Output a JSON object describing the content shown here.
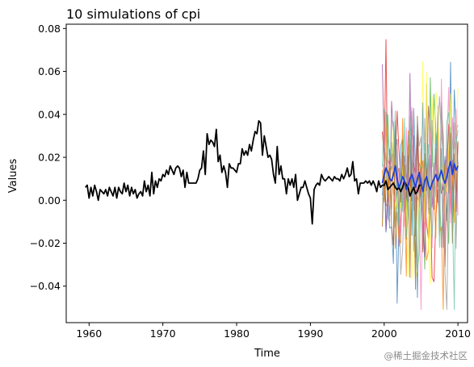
{
  "chart_data": {
    "type": "line",
    "title": "10 simulations of cpi",
    "xlabel": "Time",
    "ylabel": "Values",
    "xlim": [
      1956.9,
      2011.3
    ],
    "ylim": [
      -0.057,
      0.082
    ],
    "x_ticks": [
      1960,
      1970,
      1980,
      1990,
      2000,
      2010
    ],
    "y_ticks": [
      -0.04,
      -0.02,
      0.0,
      0.02,
      0.04,
      0.06,
      0.08
    ],
    "grid": false,
    "legend": "none",
    "colors": {
      "history": "#000000",
      "mean_simulation": "#1f3fd6",
      "simulations": [
        "#e41a1c",
        "#377eb8",
        "#4daf4a",
        "#984ea3",
        "#ff7f00",
        "#ffff33",
        "#a65628",
        "#f781bf",
        "#999999",
        "#66c2a5"
      ]
    },
    "history": {
      "x_start": 1959.5,
      "x_step": 0.25,
      "values": [
        0.006,
        0.007,
        0.001,
        0.006,
        0.002,
        0.007,
        0.004,
        0.0,
        0.005,
        0.004,
        0.003,
        0.005,
        0.002,
        0.006,
        0.004,
        0.002,
        0.006,
        0.001,
        0.006,
        0.004,
        0.003,
        0.008,
        0.004,
        0.007,
        0.002,
        0.006,
        0.003,
        0.005,
        0.001,
        0.003,
        0.004,
        0.002,
        0.009,
        0.004,
        0.007,
        0.002,
        0.013,
        0.003,
        0.009,
        0.006,
        0.01,
        0.009,
        0.012,
        0.011,
        0.014,
        0.012,
        0.016,
        0.014,
        0.012,
        0.015,
        0.016,
        0.015,
        0.011,
        0.014,
        0.006,
        0.013,
        0.008,
        0.008,
        0.008,
        0.008,
        0.008,
        0.01,
        0.014,
        0.015,
        0.023,
        0.012,
        0.031,
        0.026,
        0.028,
        0.027,
        0.025,
        0.033,
        0.018,
        0.021,
        0.013,
        0.016,
        0.013,
        0.006,
        0.017,
        0.015,
        0.015,
        0.014,
        0.013,
        0.017,
        0.017,
        0.024,
        0.021,
        0.023,
        0.021,
        0.026,
        0.023,
        0.028,
        0.032,
        0.031,
        0.037,
        0.036,
        0.021,
        0.03,
        0.025,
        0.02,
        0.021,
        0.019,
        0.012,
        0.008,
        0.025,
        0.012,
        0.016,
        0.01,
        0.01,
        0.003,
        0.01,
        0.007,
        0.01,
        0.006,
        0.012,
        0.0,
        0.003,
        0.006,
        0.006,
        0.009,
        0.006,
        0.003,
        0.001,
        -0.011,
        0.005,
        0.007,
        0.008,
        0.007,
        0.012,
        0.01,
        0.009,
        0.01,
        0.011,
        0.01,
        0.009,
        0.011,
        0.01,
        0.01,
        0.009,
        0.012,
        0.01,
        0.012,
        0.015,
        0.011,
        0.012,
        0.018,
        0.009,
        0.01,
        0.003,
        0.008,
        0.008,
        0.008,
        0.009,
        0.008,
        0.009,
        0.007,
        0.009,
        0.007,
        0.004,
        0.009,
        0.006,
        0.007,
        0.007,
        0.009,
        0.005,
        0.006,
        0.007,
        0.008,
        0.006,
        0.005,
        0.006,
        0.004,
        0.006,
        0.009,
        0.007,
        0.006,
        0.002,
        0.004,
        0.006,
        0.003,
        0.004,
        0.007,
        0.007
      ]
    },
    "simulation_window": {
      "x_start": 1999.75,
      "x_end": 2010.0,
      "spread_min": -0.051,
      "spread_max": 0.075
    },
    "mean_simulation": {
      "x_start": 1999.75,
      "x_step": 0.25,
      "values": [
        0.008,
        0.012,
        0.015,
        0.013,
        0.01,
        0.009,
        0.012,
        0.016,
        0.01,
        0.006,
        0.008,
        0.011,
        0.009,
        0.005,
        0.007,
        0.01,
        0.012,
        0.009,
        0.006,
        0.01,
        0.013,
        0.008,
        0.004,
        0.009,
        0.011,
        0.007,
        0.005,
        0.008,
        0.01,
        0.012,
        0.009,
        0.011,
        0.014,
        0.01,
        0.008,
        0.011,
        0.015,
        0.018,
        0.012,
        0.017,
        0.014,
        0.016
      ]
    }
  }
}
